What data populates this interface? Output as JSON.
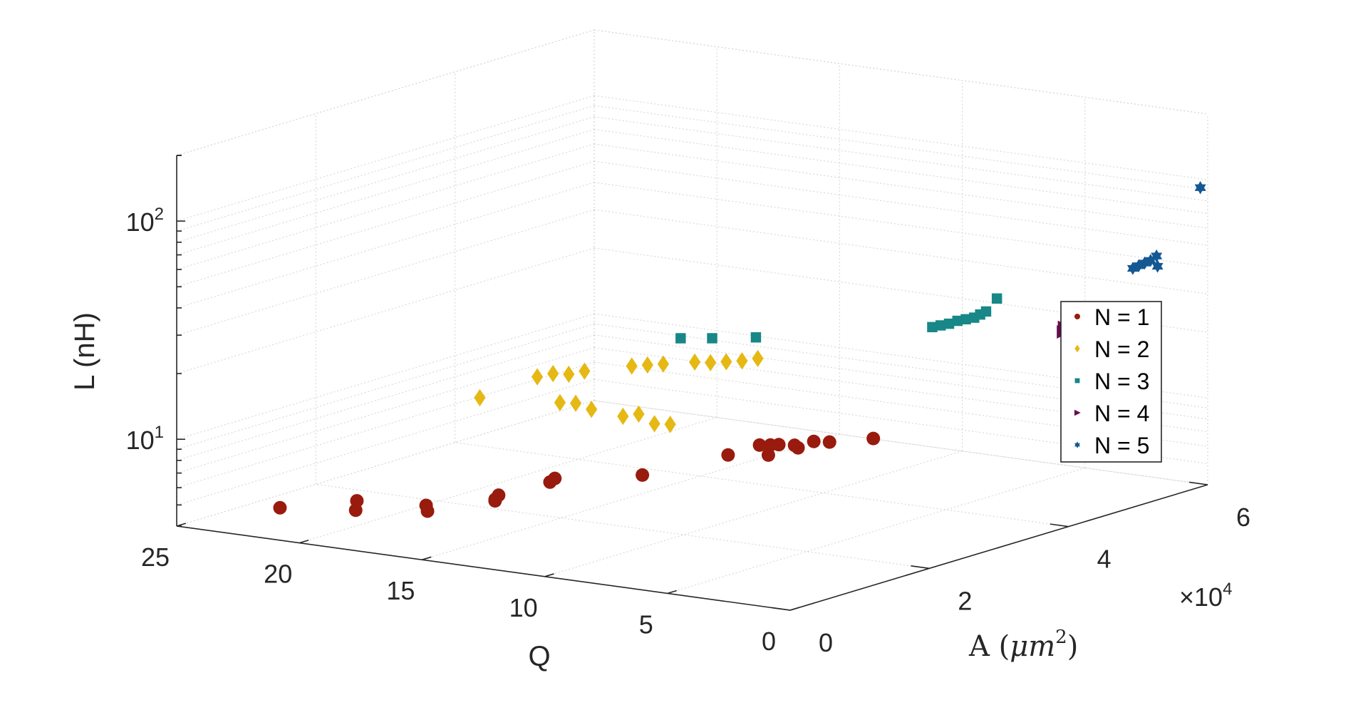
{
  "chart_data": {
    "type": "scatter3d",
    "title": "",
    "xlabel": "Q",
    "ylabel": "A (μm²)",
    "ylabel_parts": {
      "text": "A ",
      "open": "(",
      "mu": "μ",
      "m": "m",
      "sup": "2",
      "close": ")"
    },
    "zlabel": "L (nH)",
    "xlim": [
      0,
      25
    ],
    "ylim": [
      0,
      60000
    ],
    "zlim": [
      4,
      200
    ],
    "z_scale": "log",
    "x_ticks": [
      0,
      5,
      10,
      15,
      20,
      25
    ],
    "x_tick_labels": [
      "0",
      "5",
      "10",
      "15",
      "20",
      "25"
    ],
    "y_ticks": [
      0,
      20000,
      40000,
      60000
    ],
    "y_tick_labels": [
      "0",
      "2",
      "4",
      "6"
    ],
    "y_exponent_label": {
      "times": "×",
      "base": "10",
      "exp": "4"
    },
    "z_ticks": [
      10,
      100
    ],
    "z_tick_labels": [
      {
        "base": "10",
        "exp": "1"
      },
      {
        "base": "10",
        "exp": "2"
      }
    ],
    "grid": true,
    "legend_position": "right",
    "series": [
      {
        "name": "N = 1",
        "color": "#981b0e",
        "marker": "circle",
        "points": [
          [
            21.5,
            2500,
            5.2
          ],
          [
            18.5,
            2800,
            5.6
          ],
          [
            15.8,
            3600,
            6.0
          ],
          [
            15.8,
            3400,
            6.4
          ],
          [
            13.5,
            5200,
            7.0
          ],
          [
            12.0,
            7800,
            8.5
          ],
          [
            12.0,
            8500,
            8.7
          ],
          [
            9.0,
            10500,
            9.6
          ],
          [
            6.5,
            14000,
            12.0
          ],
          [
            5.5,
            15000,
            13.5
          ],
          [
            5.2,
            15500,
            13.5
          ],
          [
            5.0,
            16000,
            13.5
          ],
          [
            4.5,
            16500,
            13.5
          ],
          [
            4.5,
            17000,
            13.0
          ],
          [
            4.0,
            17500,
            14.0
          ],
          [
            3.5,
            18000,
            14.0
          ],
          [
            2.0,
            19000,
            15.0
          ],
          [
            5.0,
            14500,
            12.5
          ],
          [
            19.5,
            6500,
            5.5
          ],
          [
            15.0,
            10500,
            6.0
          ],
          [
            15.0,
            11000,
            6.2
          ]
        ]
      },
      {
        "name": "N = 2",
        "color": "#e6b813",
        "marker": "diamond",
        "points": [
          [
            15.2,
            9000,
            18
          ],
          [
            12.5,
            11000,
            18
          ],
          [
            12.0,
            11500,
            18
          ],
          [
            11.5,
            12000,
            17
          ],
          [
            10.5,
            13000,
            16
          ],
          [
            10.0,
            13500,
            16.5
          ],
          [
            9.5,
            14000,
            15
          ],
          [
            9.0,
            14500,
            15
          ],
          [
            13.0,
            9500,
            24
          ],
          [
            12.5,
            10000,
            25
          ],
          [
            12.0,
            10500,
            25
          ],
          [
            11.5,
            11000,
            26
          ],
          [
            10.0,
            12500,
            28
          ],
          [
            9.5,
            13000,
            28.5
          ],
          [
            9.0,
            13500,
            29
          ],
          [
            8.0,
            14500,
            30
          ],
          [
            7.5,
            15000,
            30
          ],
          [
            7.0,
            15500,
            30.5
          ],
          [
            6.5,
            16000,
            31
          ],
          [
            6.0,
            16500,
            32
          ]
        ]
      },
      {
        "name": "N = 3",
        "color": "#178787",
        "marker": "square",
        "points": [
          [
            9.0,
            16000,
            36
          ],
          [
            8.0,
            17000,
            36.5
          ],
          [
            6.5,
            18000,
            38
          ],
          [
            3.0,
            31000,
            36
          ],
          [
            2.8,
            31500,
            36.5
          ],
          [
            2.6,
            32000,
            37
          ],
          [
            2.4,
            32500,
            38
          ],
          [
            2.2,
            33000,
            38.5
          ],
          [
            2.0,
            33500,
            39
          ],
          [
            1.9,
            34000,
            40
          ],
          [
            1.8,
            34500,
            41
          ],
          [
            1.5,
            35000,
            47
          ]
        ]
      },
      {
        "name": "N = 4",
        "color": "#680b4e",
        "marker": "triangle-right",
        "points": [
          [
            0.5,
            41000,
            30
          ],
          [
            0.6,
            41500,
            31
          ],
          [
            0.3,
            42000,
            32
          ]
        ]
      },
      {
        "name": "N = 5",
        "color": "#145893",
        "marker": "hexagram",
        "points": [
          [
            0.5,
            51000,
            47
          ],
          [
            0.4,
            51500,
            48
          ],
          [
            0.3,
            52000,
            49
          ],
          [
            0.2,
            52500,
            50
          ],
          [
            0.1,
            53000,
            52
          ],
          [
            0.2,
            53500,
            46
          ],
          [
            0.3,
            60000,
            91
          ]
        ]
      }
    ]
  }
}
